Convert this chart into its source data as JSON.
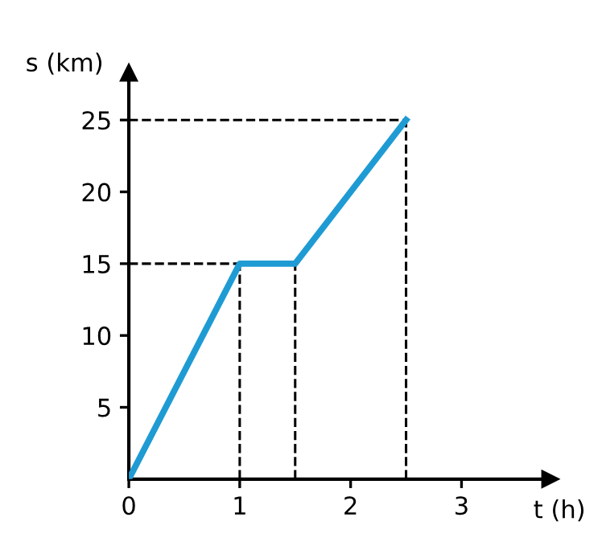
{
  "chart_data": {
    "type": "line",
    "xlabel": "t (h)",
    "ylabel": "s (km)",
    "xlim": [
      0,
      3.8
    ],
    "ylim": [
      0,
      28.3
    ],
    "xticks": [
      0,
      1,
      2,
      3
    ],
    "yticks": [
      5,
      10,
      15,
      20,
      25
    ],
    "grid": false,
    "legend": false,
    "marker": "none",
    "series": [
      {
        "color": "#1f9bd4",
        "x": [
          0,
          1,
          1.5,
          2.5
        ],
        "values": [
          0,
          15,
          15,
          25
        ],
        "line_style": "solid"
      },
      {
        "color": "#000000",
        "x": [
          0,
          1
        ],
        "values": [
          15,
          15
        ],
        "line_style": "dashed"
      },
      {
        "color": "#000000",
        "x": [
          1,
          1
        ],
        "values": [
          0,
          15
        ],
        "line_style": "dashed"
      },
      {
        "color": "#000000",
        "x": [
          1.5,
          1.5
        ],
        "values": [
          0,
          15
        ],
        "line_style": "dashed"
      },
      {
        "color": "#000000",
        "x": [
          0,
          2.5
        ],
        "values": [
          25,
          25
        ],
        "line_style": "dashed"
      },
      {
        "color": "#000000",
        "x": [
          2.5,
          2.5
        ],
        "values": [
          0,
          25
        ],
        "line_style": "dashed"
      }
    ]
  }
}
